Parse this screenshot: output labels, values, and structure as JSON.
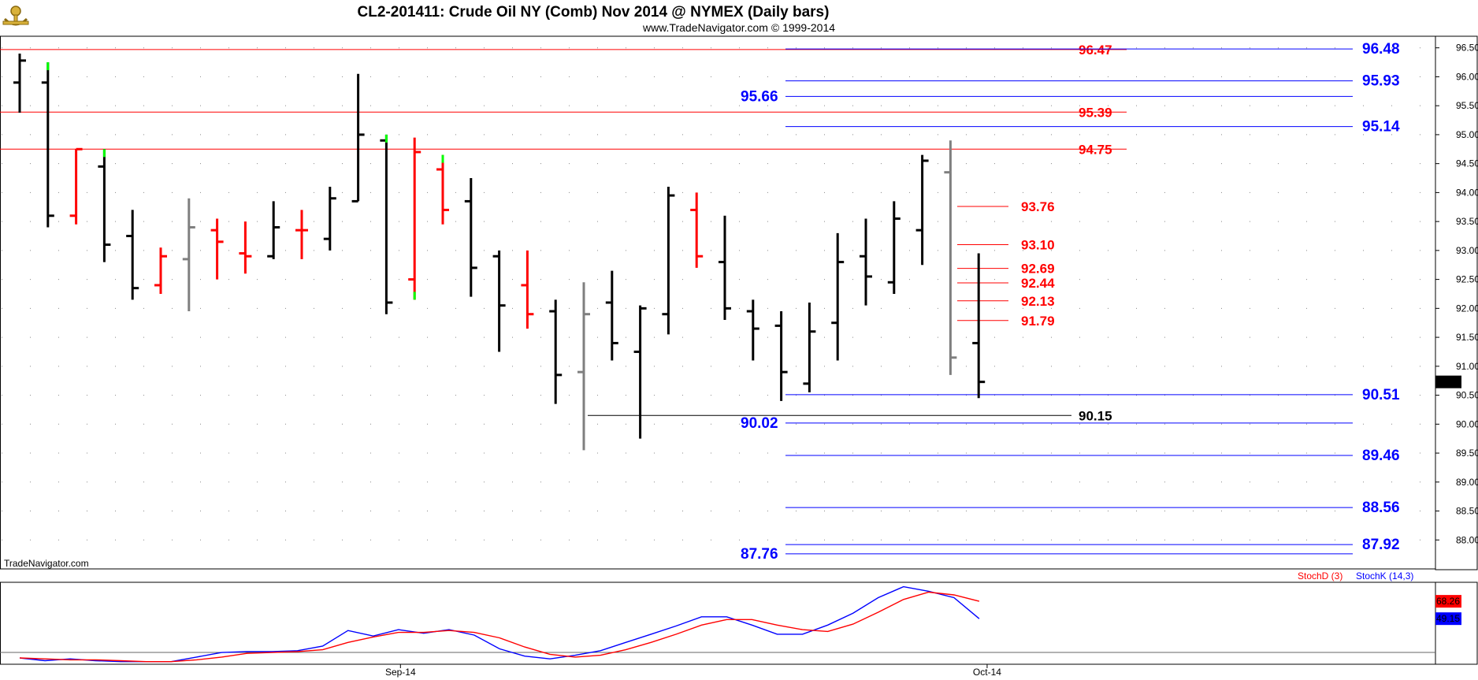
{
  "title": "CL2-201411:  Crude Oil NY (Comb) Nov 2014 @ NYMEX  (Daily bars)",
  "subtitle": "www.TradeNavigator.com © 1999-2014",
  "watermark": "TradeNavigator.com",
  "logo_icon": "anchor-logo-icon",
  "chart_data": [
    {
      "type": "ohlc",
      "title": "CL2-201411:  Crude Oil NY (Comb) Nov 2014 @ NYMEX  (Daily bars)",
      "ylim": [
        87.5,
        96.7
      ],
      "y_ticks": [
        "96.50",
        "96.00",
        "95.50",
        "95.00",
        "94.50",
        "94.00",
        "93.50",
        "93.00",
        "92.50",
        "92.00",
        "91.50",
        "91.00",
        "90.50",
        "90.00",
        "89.50",
        "89.00",
        "88.50",
        "88.00"
      ],
      "x_labels": [
        {
          "label": "Sep-14",
          "bar": 13.5
        },
        {
          "label": "Oct-14",
          "bar": 34.3
        }
      ],
      "last_price": "90.73",
      "colors": {
        "black": "#000000",
        "red": "#ff0000",
        "gray": "#7f7f7f",
        "green": "#00ff00"
      },
      "bars": [
        {
          "o": 95.9,
          "h": 96.4,
          "l": 95.38,
          "c": 96.28,
          "color": "black"
        },
        {
          "o": 95.9,
          "h": 96.25,
          "l": 93.4,
          "c": 93.6,
          "color": "black",
          "tip": "green"
        },
        {
          "o": 93.6,
          "h": 94.75,
          "l": 93.45,
          "c": 94.75,
          "color": "red"
        },
        {
          "o": 94.45,
          "h": 94.75,
          "l": 92.8,
          "c": 93.1,
          "color": "black",
          "tip": "green"
        },
        {
          "o": 93.25,
          "h": 93.7,
          "l": 92.15,
          "c": 92.35,
          "color": "black"
        },
        {
          "o": 92.4,
          "h": 93.05,
          "l": 92.25,
          "c": 92.9,
          "color": "red"
        },
        {
          "o": 92.85,
          "h": 93.9,
          "l": 91.95,
          "c": 93.4,
          "color": "gray"
        },
        {
          "o": 93.35,
          "h": 93.55,
          "l": 92.5,
          "c": 93.15,
          "color": "red"
        },
        {
          "o": 92.95,
          "h": 93.5,
          "l": 92.6,
          "c": 92.9,
          "color": "red"
        },
        {
          "o": 92.9,
          "h": 93.85,
          "l": 92.85,
          "c": 93.4,
          "color": "black"
        },
        {
          "o": 93.35,
          "h": 93.7,
          "l": 92.85,
          "c": 93.35,
          "color": "red"
        },
        {
          "o": 93.2,
          "h": 94.1,
          "l": 93.0,
          "c": 93.9,
          "color": "black"
        },
        {
          "o": 93.85,
          "h": 96.05,
          "l": 93.85,
          "c": 95.0,
          "color": "black"
        },
        {
          "o": 94.9,
          "h": 95.0,
          "l": 91.9,
          "c": 92.1,
          "color": "black",
          "tip": "green"
        },
        {
          "o": 92.5,
          "h": 94.95,
          "l": 92.15,
          "c": 94.7,
          "color": "red",
          "tip": "green"
        },
        {
          "o": 94.4,
          "h": 94.65,
          "l": 93.45,
          "c": 93.7,
          "color": "red",
          "tip": "green"
        },
        {
          "o": 93.85,
          "h": 94.25,
          "l": 92.2,
          "c": 92.7,
          "color": "black"
        },
        {
          "o": 92.9,
          "h": 93.0,
          "l": 91.25,
          "c": 92.05,
          "color": "black"
        },
        {
          "o": 92.4,
          "h": 93.0,
          "l": 91.65,
          "c": 91.9,
          "color": "red"
        },
        {
          "o": 91.95,
          "h": 92.15,
          "l": 90.35,
          "c": 90.85,
          "color": "black"
        },
        {
          "o": 90.9,
          "h": 92.45,
          "l": 89.55,
          "c": 91.9,
          "color": "gray"
        },
        {
          "o": 92.1,
          "h": 92.65,
          "l": 91.1,
          "c": 91.4,
          "color": "black"
        },
        {
          "o": 91.25,
          "h": 92.05,
          "l": 89.75,
          "c": 92.0,
          "color": "black"
        },
        {
          "o": 91.9,
          "h": 94.1,
          "l": 91.55,
          "c": 93.95,
          "color": "black"
        },
        {
          "o": 93.7,
          "h": 94.0,
          "l": 92.7,
          "c": 92.9,
          "color": "red"
        },
        {
          "o": 92.8,
          "h": 93.6,
          "l": 91.8,
          "c": 92.0,
          "color": "black"
        },
        {
          "o": 91.95,
          "h": 92.15,
          "l": 91.1,
          "c": 91.65,
          "color": "black"
        },
        {
          "o": 91.7,
          "h": 91.95,
          "l": 90.4,
          "c": 90.9,
          "color": "black"
        },
        {
          "o": 90.7,
          "h": 92.1,
          "l": 90.55,
          "c": 91.6,
          "color": "black"
        },
        {
          "o": 91.75,
          "h": 93.3,
          "l": 91.1,
          "c": 92.8,
          "color": "black"
        },
        {
          "o": 92.9,
          "h": 93.55,
          "l": 92.05,
          "c": 92.55,
          "color": "black"
        },
        {
          "o": 92.45,
          "h": 93.85,
          "l": 92.25,
          "c": 93.55,
          "color": "black"
        },
        {
          "o": 93.35,
          "h": 94.65,
          "l": 92.75,
          "c": 94.55,
          "color": "black"
        },
        {
          "o": 94.35,
          "h": 94.9,
          "l": 90.85,
          "c": 91.15,
          "color": "gray"
        },
        {
          "o": 91.4,
          "h": 92.95,
          "l": 90.45,
          "c": 90.73,
          "color": "black"
        }
      ],
      "levels": [
        {
          "value": 96.47,
          "label": "96.47",
          "color": "red",
          "line": "full",
          "label_side": "mid"
        },
        {
          "value": 95.39,
          "label": "95.39",
          "color": "red",
          "line": "full",
          "label_side": "mid"
        },
        {
          "value": 94.75,
          "label": "94.75",
          "color": "red",
          "line": "full",
          "label_side": "mid"
        },
        {
          "value": 93.76,
          "label": "93.76",
          "color": "red",
          "line": "short",
          "label_side": "short"
        },
        {
          "value": 93.1,
          "label": "93.10",
          "color": "red",
          "line": "short",
          "label_side": "short"
        },
        {
          "value": 92.69,
          "label": "92.69",
          "color": "red",
          "line": "short",
          "label_side": "short"
        },
        {
          "value": 92.44,
          "label": "92.44",
          "color": "red",
          "line": "short",
          "label_side": "short"
        },
        {
          "value": 92.13,
          "label": "92.13",
          "color": "red",
          "line": "short",
          "label_side": "short"
        },
        {
          "value": 91.79,
          "label": "91.79",
          "color": "red",
          "line": "short",
          "label_side": "short"
        },
        {
          "value": 96.48,
          "label": "96.48",
          "color": "blue",
          "line": "right",
          "label_side": "right"
        },
        {
          "value": 95.93,
          "label": "95.93",
          "color": "blue",
          "line": "right",
          "label_side": "right"
        },
        {
          "value": 95.66,
          "label": "95.66",
          "color": "blue",
          "line": "right",
          "label_side": "left"
        },
        {
          "value": 95.14,
          "label": "95.14",
          "color": "blue",
          "line": "right",
          "label_side": "right"
        },
        {
          "value": 90.51,
          "label": "90.51",
          "color": "blue",
          "line": "right",
          "label_side": "right"
        },
        {
          "value": 90.02,
          "label": "90.02",
          "color": "blue",
          "line": "right",
          "label_side": "left"
        },
        {
          "value": 89.46,
          "label": "89.46",
          "color": "blue",
          "line": "right",
          "label_side": "right"
        },
        {
          "value": 88.56,
          "label": "88.56",
          "color": "blue",
          "line": "right",
          "label_side": "right"
        },
        {
          "value": 87.92,
          "label": "87.92",
          "color": "blue",
          "line": "right",
          "label_side": "right"
        },
        {
          "value": 87.76,
          "label": "87.76",
          "color": "blue",
          "line": "right",
          "label_side": "left"
        },
        {
          "value": 90.15,
          "label": "90.15",
          "color": "black",
          "line": "low",
          "label_side": "mid"
        }
      ]
    },
    {
      "type": "line",
      "title": "",
      "ylim": [
        0,
        100
      ],
      "legend": [
        {
          "name": "StochD (3)",
          "color": "#ff0000"
        },
        {
          "name": "StochK (14,3)",
          "color": "#0000ff"
        }
      ],
      "series": [
        {
          "name": "StochK (14,3)",
          "color": "#0000ff",
          "last": "49.15",
          "values": [
            6,
            3,
            5,
            3,
            2,
            2,
            2,
            7,
            12,
            13,
            13,
            14,
            19,
            36,
            30,
            37,
            33,
            37,
            31,
            16,
            8,
            5,
            9,
            14,
            23,
            32,
            41,
            51,
            51,
            42,
            32,
            32,
            42,
            55,
            72,
            84,
            79,
            72,
            49
          ]
        },
        {
          "name": "StochD (3)",
          "color": "#ff0000",
          "last": "68.26",
          "values": [
            6,
            5,
            4,
            4,
            3,
            2,
            2,
            4,
            7,
            11,
            12,
            13,
            15,
            23,
            29,
            34,
            34,
            36,
            34,
            28,
            18,
            10,
            7,
            9,
            15,
            23,
            32,
            42,
            48,
            48,
            42,
            37,
            35,
            43,
            56,
            70,
            78,
            75,
            68
          ]
        }
      ]
    }
  ]
}
